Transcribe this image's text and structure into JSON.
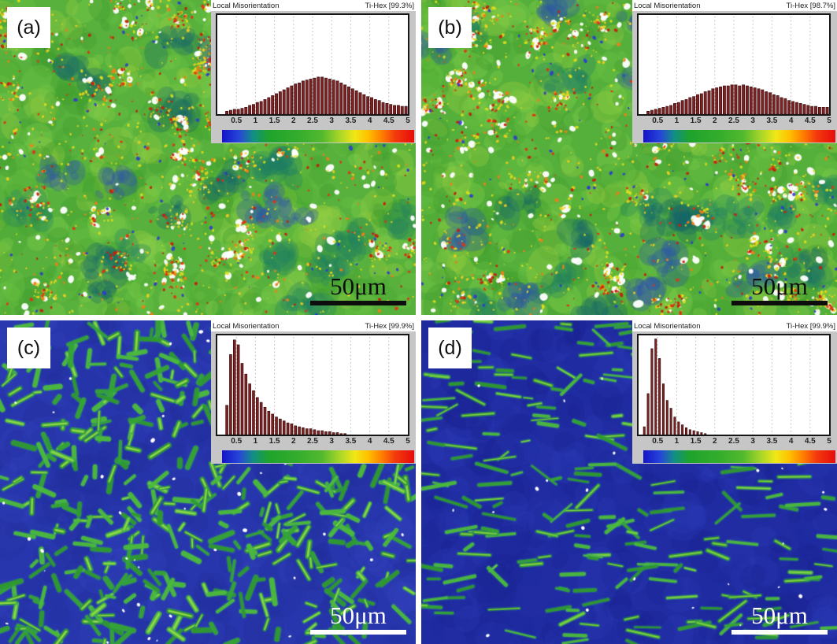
{
  "figure": {
    "axis": {
      "ticks": [
        "0.5",
        "1",
        "1.5",
        "2",
        "2.5",
        "3",
        "3.5",
        "4",
        "4.5",
        "5"
      ],
      "min": 0,
      "max": 5
    },
    "colorbar": {
      "stops": [
        [
          "#1414c8",
          0
        ],
        [
          "#2746d8",
          9
        ],
        [
          "#128e86",
          16
        ],
        [
          "#1ea32c",
          24
        ],
        [
          "#35ad2d",
          40
        ],
        [
          "#52b92e",
          52
        ],
        [
          "#a6d52a",
          61
        ],
        [
          "#f0e816",
          69
        ],
        [
          "#ffc000",
          76
        ],
        [
          "#ff8000",
          83
        ],
        [
          "#f33b0d",
          90
        ],
        [
          "#e60c0c",
          100
        ]
      ]
    },
    "histogram_style": {
      "bar_fill": "#7d2123",
      "bar_stroke": "#300a0a",
      "grid_color": "#b9b9b9"
    },
    "panels": [
      {
        "label": "(a)",
        "scale_bar": {
          "label": "50μm",
          "color": "#0d0d0d"
        },
        "inset": {
          "title": "Local Misorientation",
          "phase_label": "Ti-Hex [99.3%]"
        },
        "map": {
          "style": "speckle",
          "seed": 7,
          "base": "#57b13c",
          "greens": [
            "#6cc243",
            "#47a531",
            "#83cf4a",
            "#3f9c2e",
            "#9ccf3f"
          ],
          "darks": [
            "#1d7f63",
            "#2a4fae",
            "#15656b"
          ],
          "yellows": [
            "#dfe01b",
            "#f2cf1e"
          ],
          "reds": [
            "#e03413",
            "#ef7e17",
            "#c41f0e"
          ],
          "blues": [
            "#2c3ccc"
          ],
          "counts": {
            "greenBlobs": 540,
            "darkClusters": 26,
            "whitePatches": 280,
            "yellowSpecks": 1100,
            "redSpecks": 800,
            "blueSpecks": 90
          }
        }
      },
      {
        "label": "(b)",
        "scale_bar": {
          "label": "50μm",
          "color": "#0d0d0d"
        },
        "inset": {
          "title": "Local Misorientation",
          "phase_label": "Ti-Hex [98.7%]"
        },
        "map": {
          "style": "speckle",
          "seed": 23,
          "base": "#55af3b",
          "greens": [
            "#6cc243",
            "#47a531",
            "#83cf4a",
            "#3f9c2e",
            "#9ccf3f"
          ],
          "darks": [
            "#1d7f63",
            "#2a4fae",
            "#15656b"
          ],
          "yellows": [
            "#dfe01b",
            "#f2cf1e"
          ],
          "reds": [
            "#e03413",
            "#ef7e17",
            "#c41f0e"
          ],
          "blues": [
            "#2c3ccc"
          ],
          "counts": {
            "greenBlobs": 540,
            "darkClusters": 28,
            "whitePatches": 300,
            "yellowSpecks": 1100,
            "redSpecks": 820,
            "blueSpecks": 100
          }
        }
      },
      {
        "label": "(c)",
        "scale_bar": {
          "label": "50μm",
          "color": "#ffffff"
        },
        "inset": {
          "title": "Local Misorientation",
          "phase_label": "Ti-Hex [99.9%]"
        },
        "map": {
          "style": "lath",
          "seed": 41,
          "base": "#2836ad",
          "baseVars": [
            "#2030a0",
            "#3244c0",
            "#1f2a96"
          ],
          "greens": [
            "#36a433",
            "#4cbb3a",
            "#2f9a2d"
          ],
          "core": "#9bdc4f",
          "halo": "#2f8f8f",
          "angleMode": "any",
          "count": 480,
          "len": [
            8,
            30
          ],
          "width": [
            3.5,
            7
          ],
          "whiteDots": 42
        }
      },
      {
        "label": "(d)",
        "scale_bar": {
          "label": "50μm",
          "color": "#ffffff"
        },
        "inset": {
          "title": "Local Misorientation",
          "phase_label": "Ti-Hex [99.9%]"
        },
        "map": {
          "style": "lath",
          "seed": 77,
          "base": "#212ca3",
          "baseVars": [
            "#1b269a",
            "#2c3ab6",
            "#171f8c"
          ],
          "greens": [
            "#36a433",
            "#4cbb3a",
            "#2f9a2d"
          ],
          "core": "#8fd44a",
          "halo": "#2f8f8f",
          "angleMode": "horiz",
          "count": 250,
          "len": [
            10,
            42
          ],
          "width": [
            2.5,
            5
          ],
          "whiteDots": 34
        }
      }
    ]
  },
  "chart_data": [
    {
      "type": "bar",
      "panel": "(a)",
      "title": "Local Misorientation",
      "phase": "Ti-Hex [99.3%]",
      "xlim": [
        0,
        5
      ],
      "xticks": [
        0.5,
        1,
        1.5,
        2,
        2.5,
        3,
        3.5,
        4,
        4.5,
        5
      ],
      "bar_start": 0.25,
      "bar_step": 0.1,
      "bar_rel_width": 0.68,
      "values_note": "relative frequency, fraction of plot height",
      "values": [
        0.03,
        0.04,
        0.05,
        0.05,
        0.06,
        0.07,
        0.09,
        0.1,
        0.12,
        0.13,
        0.15,
        0.17,
        0.19,
        0.21,
        0.23,
        0.25,
        0.27,
        0.29,
        0.31,
        0.32,
        0.34,
        0.35,
        0.36,
        0.37,
        0.38,
        0.38,
        0.37,
        0.36,
        0.35,
        0.34,
        0.32,
        0.3,
        0.28,
        0.26,
        0.24,
        0.22,
        0.2,
        0.18,
        0.17,
        0.15,
        0.14,
        0.12,
        0.11,
        0.1,
        0.09,
        0.09,
        0.08,
        0.08
      ]
    },
    {
      "type": "bar",
      "panel": "(b)",
      "title": "Local Misorientation",
      "phase": "Ti-Hex [98.7%]",
      "xlim": [
        0,
        5
      ],
      "xticks": [
        0.5,
        1,
        1.5,
        2,
        2.5,
        3,
        3.5,
        4,
        4.5,
        5
      ],
      "bar_start": 0.25,
      "bar_step": 0.1,
      "bar_rel_width": 0.68,
      "values_note": "relative frequency, fraction of plot height",
      "values": [
        0.03,
        0.04,
        0.05,
        0.06,
        0.07,
        0.08,
        0.09,
        0.11,
        0.12,
        0.14,
        0.15,
        0.17,
        0.18,
        0.2,
        0.21,
        0.23,
        0.24,
        0.26,
        0.27,
        0.28,
        0.29,
        0.29,
        0.3,
        0.3,
        0.29,
        0.3,
        0.29,
        0.28,
        0.27,
        0.26,
        0.25,
        0.23,
        0.22,
        0.2,
        0.19,
        0.17,
        0.16,
        0.14,
        0.13,
        0.12,
        0.11,
        0.1,
        0.09,
        0.08,
        0.08,
        0.07,
        0.07,
        0.07
      ]
    },
    {
      "type": "bar",
      "panel": "(c)",
      "title": "Local Misorientation",
      "phase": "Ti-Hex [99.9%]",
      "xlim": [
        0,
        5
      ],
      "xticks": [
        0.5,
        1,
        1.5,
        2,
        2.5,
        3,
        3.5,
        4,
        4.5,
        5
      ],
      "bar_start": 0.25,
      "bar_step": 0.1,
      "bar_rel_width": 0.62,
      "values_note": "relative frequency, fraction of plot height",
      "values": [
        0.3,
        0.82,
        0.97,
        0.92,
        0.73,
        0.62,
        0.52,
        0.45,
        0.38,
        0.33,
        0.28,
        0.24,
        0.21,
        0.18,
        0.16,
        0.14,
        0.12,
        0.11,
        0.09,
        0.08,
        0.07,
        0.06,
        0.06,
        0.05,
        0.04,
        0.04,
        0.03,
        0.03,
        0.02,
        0.02,
        0.01,
        0.01
      ]
    },
    {
      "type": "bar",
      "panel": "(d)",
      "title": "Local Misorientation",
      "phase": "Ti-Hex [99.9%]",
      "xlim": [
        0,
        5
      ],
      "xticks": [
        0.5,
        1,
        1.5,
        2,
        2.5,
        3,
        3.5,
        4,
        4.5,
        5
      ],
      "bar_start": 0.15,
      "bar_step": 0.1,
      "bar_rel_width": 0.5,
      "values_note": "relative frequency, fraction of plot height",
      "values": [
        0.08,
        0.42,
        0.88,
        0.98,
        0.78,
        0.52,
        0.35,
        0.27,
        0.18,
        0.13,
        0.1,
        0.07,
        0.05,
        0.04,
        0.03,
        0.02,
        0.01
      ]
    }
  ]
}
